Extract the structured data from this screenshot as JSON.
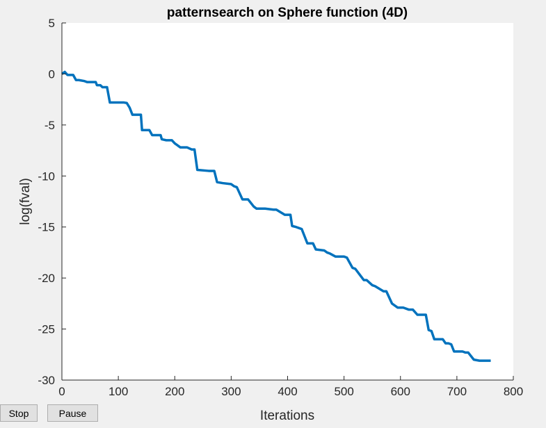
{
  "controls": {
    "stop_label": "Stop",
    "pause_label": "Pause"
  },
  "chart_data": {
    "type": "line",
    "title": "patternsearch on Sphere function (4D)",
    "xlabel": "Iterations",
    "ylabel": "log(fval)",
    "xlim": [
      0,
      800
    ],
    "ylim": [
      -30,
      5
    ],
    "xticks": [
      0,
      100,
      200,
      300,
      400,
      500,
      600,
      700,
      800
    ],
    "yticks": [
      5,
      0,
      -5,
      -10,
      -15,
      -20,
      -25,
      -30
    ],
    "grid": false,
    "line_color": "#0072bd",
    "series": [
      {
        "x": [
          0,
          5,
          10,
          20,
          25,
          30,
          40,
          45,
          60,
          62,
          68,
          72,
          80,
          85,
          110,
          115,
          120,
          125,
          140,
          142,
          155,
          160,
          175,
          177,
          185,
          195,
          200,
          210,
          222,
          230,
          235,
          240,
          260,
          270,
          275,
          285,
          300,
          305,
          310,
          320,
          330,
          340,
          345,
          360,
          375,
          380,
          395,
          405,
          408,
          415,
          420,
          425,
          435,
          445,
          450,
          465,
          470,
          475,
          485,
          500,
          505,
          515,
          520,
          535,
          540,
          550,
          555,
          570,
          575,
          585,
          595,
          605,
          615,
          622,
          630,
          635,
          645,
          650,
          655,
          660,
          675,
          680,
          685,
          690,
          695,
          710,
          715,
          720,
          730,
          740,
          760
        ],
        "y": [
          0,
          0.2,
          -0.1,
          -0.1,
          -0.6,
          -0.6,
          -0.7,
          -0.8,
          -0.8,
          -1.1,
          -1.1,
          -1.3,
          -1.3,
          -2.8,
          -2.8,
          -2.85,
          -3.3,
          -4.0,
          -4.0,
          -5.5,
          -5.5,
          -6.0,
          -6.0,
          -6.4,
          -6.5,
          -6.5,
          -6.8,
          -7.2,
          -7.2,
          -7.4,
          -7.4,
          -9.4,
          -9.5,
          -9.5,
          -10.6,
          -10.7,
          -10.8,
          -11.0,
          -11.1,
          -12.3,
          -12.3,
          -13.0,
          -13.2,
          -13.2,
          -13.3,
          -13.3,
          -13.8,
          -13.8,
          -14.9,
          -15.0,
          -15.1,
          -15.2,
          -16.6,
          -16.6,
          -17.2,
          -17.3,
          -17.5,
          -17.6,
          -17.9,
          -17.9,
          -18.0,
          -19.0,
          -19.1,
          -20.2,
          -20.2,
          -20.7,
          -20.8,
          -21.3,
          -21.3,
          -22.5,
          -22.9,
          -22.9,
          -23.1,
          -23.1,
          -23.6,
          -23.6,
          -23.6,
          -25.1,
          -25.2,
          -26.0,
          -26.0,
          -26.4,
          -26.4,
          -26.5,
          -27.2,
          -27.2,
          -27.3,
          -27.3,
          -28.0,
          -28.1,
          -28.1
        ]
      }
    ]
  }
}
